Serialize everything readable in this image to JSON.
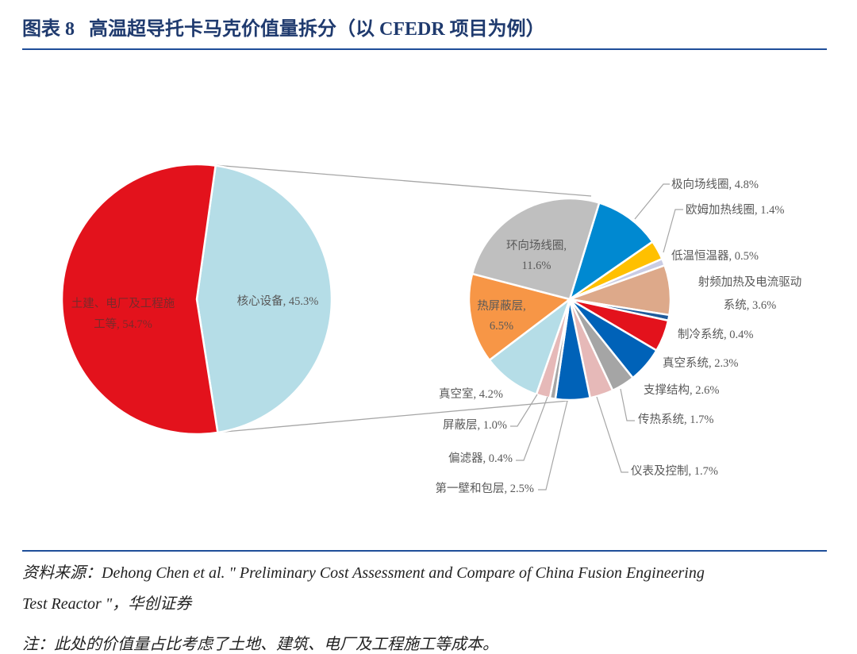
{
  "header": {
    "title": "图表 8   高温超导托卡马克价值量拆分（以 CFEDR 项目为例）"
  },
  "footer": {
    "source_line1": "资料来源：Dehong Chen et al. \" Preliminary Cost Assessment and Compare of China Fusion Engineering",
    "source_line2": "Test Reactor \"，华创证券",
    "note": "注：此处的价值量占比考虑了土地、建筑、电厂及工程施工等成本。"
  },
  "chart_data": {
    "type": "pie",
    "subtype": "pie-of-pie",
    "title": "高温超导托卡马克价值量拆分（以 CFEDR 项目为例）",
    "unit": "%",
    "main_pie": [
      {
        "label": "土建、电厂及工程施工等",
        "value": 54.7,
        "text": [
          "土建、电厂及工程施",
          "工等, 54.7%"
        ],
        "color": "#E3121C"
      },
      {
        "label": "核心设备",
        "value": 45.3,
        "text": [
          "核心设备, 45.3%"
        ],
        "color": "#B5DDE7"
      }
    ],
    "secondary_pie": [
      {
        "label": "极向场线圈",
        "value": 4.8,
        "text": [
          "极向场线圈, 4.8%"
        ],
        "color": "#0089D1"
      },
      {
        "label": "欧姆加热线圈",
        "value": 1.4,
        "text": [
          "欧姆加热线圈, 1.4%"
        ],
        "color": "#FFC000"
      },
      {
        "label": "低温恒温器",
        "value": 0.5,
        "text": [
          "低温恒温器, 0.5%"
        ],
        "color": "#C9CCE4"
      },
      {
        "label": "射频加热及电流驱动系统",
        "value": 3.6,
        "text": [
          "射频加热及电流驱动",
          "系统, 3.6%"
        ],
        "color": "#DDA98A"
      },
      {
        "label": "制冷系统",
        "value": 0.4,
        "text": [
          "制冷系统, 0.4%"
        ],
        "color": "#1F5B9B"
      },
      {
        "label": "真空系统",
        "value": 2.3,
        "text": [
          "真空系统, 2.3%"
        ],
        "color": "#E3121C"
      },
      {
        "label": "支撑结构",
        "value": 2.6,
        "text": [
          "支撑结构, 2.6%"
        ],
        "color": "#0062B8"
      },
      {
        "label": "传热系统",
        "value": 1.7,
        "text": [
          "传热系统, 1.7%"
        ],
        "color": "#A5A5A5"
      },
      {
        "label": "仪表及控制",
        "value": 1.7,
        "text": [
          "仪表及控制, 1.7%"
        ],
        "color": "#E6B9B8"
      },
      {
        "label": "第一壁和包层",
        "value": 2.5,
        "text": [
          "第一壁和包层, 2.5%"
        ],
        "color": "#0062B8"
      },
      {
        "label": "偏滤器",
        "value": 0.4,
        "text": [
          "偏滤器, 0.4%"
        ],
        "color": "#A5A5A5"
      },
      {
        "label": "屏蔽层",
        "value": 1.0,
        "text": [
          "屏蔽层, 1.0%"
        ],
        "color": "#E6B9B8"
      },
      {
        "label": "真空室",
        "value": 4.2,
        "text": [
          "真空室, 4.2%"
        ],
        "color": "#B5DDE7"
      },
      {
        "label": "热屏蔽层",
        "value": 6.5,
        "text": [
          "热屏蔽层,",
          "6.5%"
        ],
        "color": "#F79646"
      },
      {
        "label": "环向场线圈",
        "value": 11.6,
        "text": [
          "环向场线圈,",
          "11.6%"
        ],
        "color": "#BFBFBF"
      }
    ]
  }
}
